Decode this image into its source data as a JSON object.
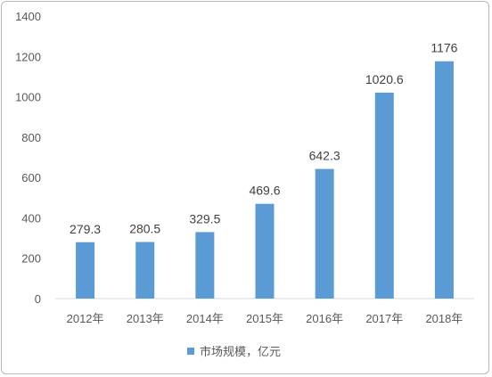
{
  "chart_data": {
    "type": "bar",
    "categories": [
      "2012年",
      "2013年",
      "2014年",
      "2015年",
      "2016年",
      "2017年",
      "2018年"
    ],
    "series": [
      {
        "name": "市场规模，亿元",
        "values": [
          279.3,
          280.5,
          329.5,
          469.6,
          642.3,
          1020.6,
          1176
        ]
      }
    ],
    "data_labels": [
      "279.3",
      "280.5",
      "329.5",
      "469.6",
      "642.3",
      "1020.6",
      "1176"
    ],
    "y_ticks": [
      "0",
      "200",
      "400",
      "600",
      "800",
      "1000",
      "1200",
      "1400"
    ],
    "ylim": [
      0,
      1400
    ],
    "grid": false,
    "legend_position": "bottom",
    "colors": {
      "bar": "#5b9bd5",
      "axis": "#d9d9d9",
      "border": "#b8b8b8"
    }
  }
}
